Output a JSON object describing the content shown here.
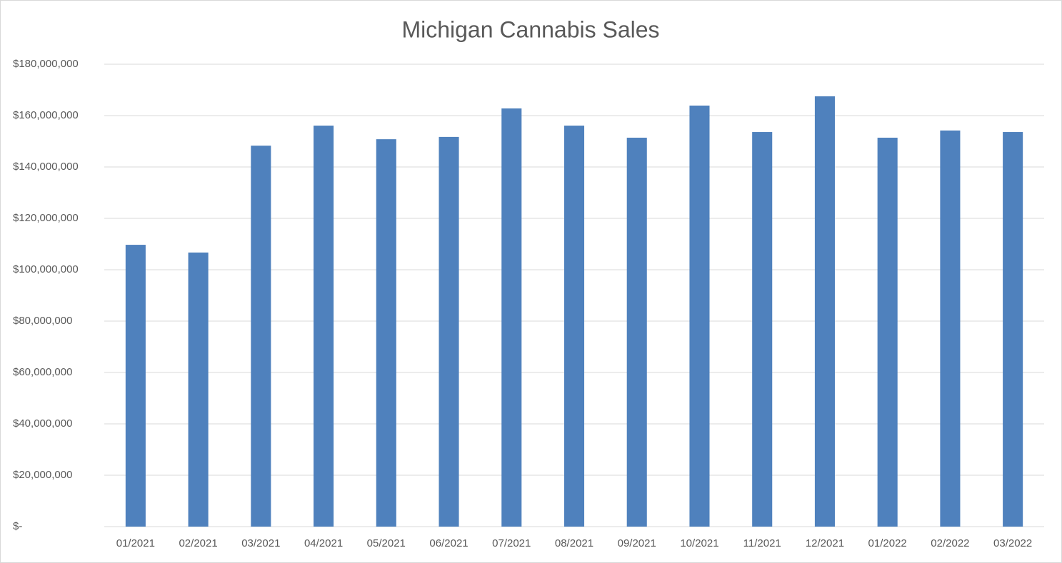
{
  "chart_data": {
    "type": "bar",
    "title": "Michigan Cannabis Sales",
    "categories": [
      "01/2021",
      "02/2021",
      "03/2021",
      "04/2021",
      "05/2021",
      "06/2021",
      "07/2021",
      "08/2021",
      "09/2021",
      "10/2021",
      "11/2021",
      "12/2021",
      "01/2022",
      "02/2022",
      "03/2022"
    ],
    "values": [
      109700000,
      106700000,
      148300000,
      156100000,
      150800000,
      151700000,
      162800000,
      156100000,
      151400000,
      163900000,
      153600000,
      167500000,
      151400000,
      154200000,
      153600000
    ],
    "color": "#4f81bd",
    "ylim": [
      0,
      180000000
    ],
    "yticks": [
      {
        "value": 0,
        "label": "$-"
      },
      {
        "value": 20000000,
        "label": "$20,000,000"
      },
      {
        "value": 40000000,
        "label": "$40,000,000"
      },
      {
        "value": 60000000,
        "label": "$60,000,000"
      },
      {
        "value": 80000000,
        "label": "$80,000,000"
      },
      {
        "value": 100000000,
        "label": "$100,000,000"
      },
      {
        "value": 120000000,
        "label": "$120,000,000"
      },
      {
        "value": 140000000,
        "label": "$140,000,000"
      },
      {
        "value": 160000000,
        "label": "$160,000,000"
      },
      {
        "value": 180000000,
        "label": "$180,000,000"
      }
    ],
    "grid": true
  }
}
